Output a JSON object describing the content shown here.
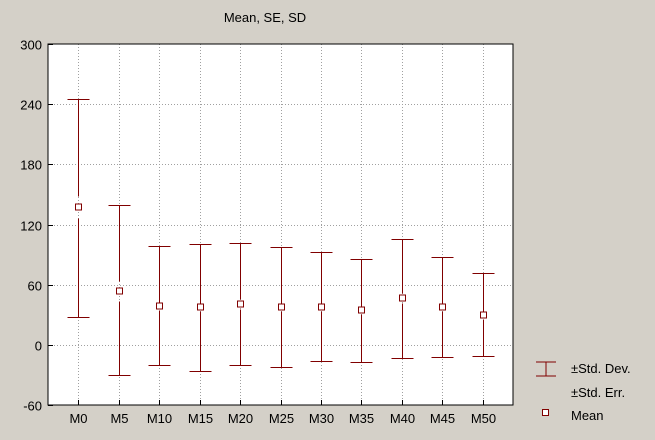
{
  "chart_data": {
    "type": "boxplot",
    "title": "Mean, SE, SD",
    "xlabel": "",
    "ylabel": "",
    "ylim": [
      -60,
      300
    ],
    "yticks": [
      "300",
      "240",
      "180",
      "120",
      "60",
      "0",
      "-60"
    ],
    "ytick_values": [
      300,
      240,
      180,
      120,
      60,
      0,
      -60
    ],
    "grid": true,
    "legend_position": "bottom-right",
    "colors": {
      "series": "#800000",
      "plot_bg": "#ffffff",
      "background": "#d4d0c8",
      "grid": "#a0a0a0"
    },
    "categories": [
      "M0",
      "M5",
      "M10",
      "M15",
      "M20",
      "M25",
      "M30",
      "M35",
      "M40",
      "M45",
      "M50"
    ],
    "mean": [
      137,
      54,
      39,
      38,
      41,
      38,
      38,
      35,
      47,
      38,
      30
    ],
    "sd_upper": [
      245,
      139,
      99,
      101,
      102,
      98,
      93,
      86,
      106,
      88,
      72
    ],
    "sd_lower": [
      28,
      -30,
      -20,
      -26,
      -20,
      -22,
      -16,
      -17,
      -13,
      -12,
      -11
    ],
    "se_upper": [
      148,
      64,
      43,
      42,
      46,
      42,
      42,
      39,
      52,
      42,
      34
    ],
    "se_lower": [
      126,
      44,
      35,
      34,
      36,
      34,
      34,
      31,
      42,
      34,
      26
    ],
    "legend": {
      "std_dev": "±Std. Dev.",
      "std_err": "±Std. Err.",
      "mean": "Mean"
    }
  }
}
